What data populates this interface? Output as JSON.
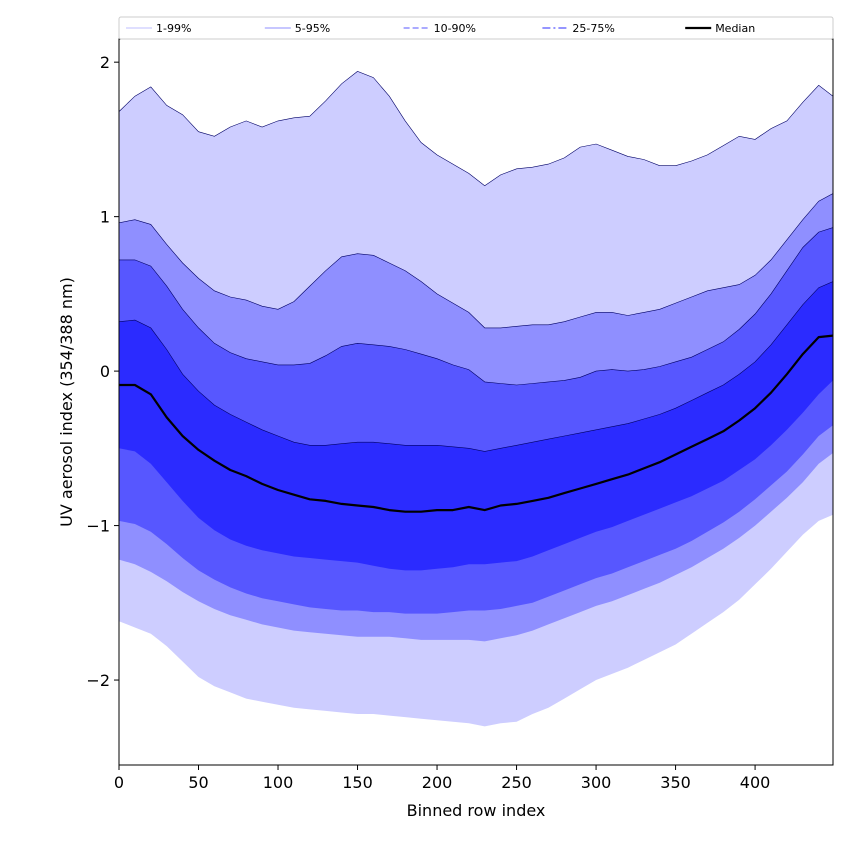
{
  "chart_data": {
    "type": "area",
    "xlabel": "Binned row index",
    "ylabel": "UV aerosol index (354/388 nm)",
    "xlim": [
      0,
      449
    ],
    "ylim": [
      -2.55,
      2.15
    ],
    "x_ticks": [
      0,
      50,
      100,
      150,
      200,
      250,
      300,
      350,
      400
    ],
    "y_ticks": [
      2,
      1,
      0,
      -1,
      -2
    ],
    "y_tick_labels": [
      "2",
      "1",
      "0",
      "−1",
      "−2"
    ],
    "legend_position": "top",
    "x": [
      0,
      10,
      20,
      30,
      40,
      50,
      60,
      70,
      80,
      90,
      100,
      110,
      120,
      130,
      140,
      150,
      160,
      170,
      180,
      190,
      200,
      210,
      220,
      230,
      240,
      250,
      260,
      270,
      280,
      290,
      300,
      310,
      320,
      330,
      340,
      350,
      360,
      370,
      380,
      390,
      400,
      410,
      420,
      430,
      440,
      449
    ],
    "bands": [
      {
        "name": "1-99%",
        "color": "#cdcdff",
        "line_style": "solid",
        "upper": [
          1.68,
          1.78,
          1.84,
          1.72,
          1.66,
          1.55,
          1.52,
          1.58,
          1.62,
          1.58,
          1.62,
          1.64,
          1.65,
          1.75,
          1.86,
          1.94,
          1.9,
          1.78,
          1.62,
          1.48,
          1.4,
          1.34,
          1.28,
          1.2,
          1.27,
          1.31,
          1.32,
          1.34,
          1.38,
          1.45,
          1.47,
          1.43,
          1.39,
          1.37,
          1.33,
          1.33,
          1.36,
          1.4,
          1.46,
          1.52,
          1.5,
          1.57,
          1.62,
          1.74,
          1.85,
          1.78
        ],
        "lower": [
          -1.62,
          -1.66,
          -1.7,
          -1.78,
          -1.88,
          -1.98,
          -2.04,
          -2.08,
          -2.12,
          -2.14,
          -2.16,
          -2.18,
          -2.19,
          -2.2,
          -2.21,
          -2.22,
          -2.22,
          -2.23,
          -2.24,
          -2.25,
          -2.26,
          -2.27,
          -2.28,
          -2.3,
          -2.28,
          -2.27,
          -2.22,
          -2.18,
          -2.12,
          -2.06,
          -2.0,
          -1.96,
          -1.92,
          -1.87,
          -1.82,
          -1.77,
          -1.7,
          -1.63,
          -1.56,
          -1.48,
          -1.38,
          -1.28,
          -1.17,
          -1.06,
          -0.97,
          -0.93
        ]
      },
      {
        "name": "5-95%",
        "color": "#8f8fff",
        "line_style": "solid",
        "upper": [
          0.96,
          0.98,
          0.95,
          0.82,
          0.7,
          0.6,
          0.52,
          0.48,
          0.46,
          0.42,
          0.4,
          0.45,
          0.55,
          0.65,
          0.74,
          0.76,
          0.75,
          0.7,
          0.65,
          0.58,
          0.5,
          0.44,
          0.38,
          0.28,
          0.28,
          0.29,
          0.3,
          0.3,
          0.32,
          0.35,
          0.38,
          0.38,
          0.36,
          0.38,
          0.4,
          0.44,
          0.48,
          0.52,
          0.54,
          0.56,
          0.62,
          0.72,
          0.85,
          0.98,
          1.1,
          1.15
        ],
        "lower": [
          -1.22,
          -1.25,
          -1.3,
          -1.36,
          -1.43,
          -1.49,
          -1.54,
          -1.58,
          -1.61,
          -1.64,
          -1.66,
          -1.68,
          -1.69,
          -1.7,
          -1.71,
          -1.72,
          -1.72,
          -1.72,
          -1.73,
          -1.74,
          -1.74,
          -1.74,
          -1.74,
          -1.75,
          -1.73,
          -1.71,
          -1.68,
          -1.64,
          -1.6,
          -1.56,
          -1.52,
          -1.49,
          -1.45,
          -1.41,
          -1.37,
          -1.32,
          -1.27,
          -1.21,
          -1.15,
          -1.08,
          -1.0,
          -0.91,
          -0.82,
          -0.72,
          -0.6,
          -0.53
        ]
      },
      {
        "name": "10-90%",
        "color": "#5757ff",
        "line_style": "dashed",
        "upper": [
          0.72,
          0.72,
          0.68,
          0.55,
          0.4,
          0.28,
          0.18,
          0.12,
          0.08,
          0.06,
          0.04,
          0.04,
          0.05,
          0.1,
          0.16,
          0.18,
          0.17,
          0.16,
          0.14,
          0.11,
          0.08,
          0.04,
          0.01,
          -0.07,
          -0.08,
          -0.09,
          -0.08,
          -0.07,
          -0.06,
          -0.04,
          0.0,
          0.01,
          0.0,
          0.01,
          0.03,
          0.06,
          0.09,
          0.14,
          0.19,
          0.27,
          0.37,
          0.5,
          0.65,
          0.8,
          0.9,
          0.93
        ],
        "lower": [
          -0.97,
          -0.99,
          -1.04,
          -1.12,
          -1.21,
          -1.29,
          -1.35,
          -1.4,
          -1.44,
          -1.47,
          -1.49,
          -1.51,
          -1.53,
          -1.54,
          -1.55,
          -1.55,
          -1.56,
          -1.56,
          -1.57,
          -1.57,
          -1.57,
          -1.56,
          -1.55,
          -1.55,
          -1.54,
          -1.52,
          -1.5,
          -1.46,
          -1.42,
          -1.38,
          -1.34,
          -1.31,
          -1.27,
          -1.23,
          -1.19,
          -1.15,
          -1.1,
          -1.04,
          -0.98,
          -0.91,
          -0.83,
          -0.74,
          -0.65,
          -0.54,
          -0.42,
          -0.35
        ]
      },
      {
        "name": "25-75%",
        "color": "#2b2bff",
        "line_style": "dashdot",
        "upper": [
          0.32,
          0.33,
          0.28,
          0.14,
          -0.02,
          -0.13,
          -0.22,
          -0.28,
          -0.33,
          -0.38,
          -0.42,
          -0.46,
          -0.48,
          -0.48,
          -0.47,
          -0.46,
          -0.46,
          -0.47,
          -0.48,
          -0.48,
          -0.48,
          -0.49,
          -0.5,
          -0.52,
          -0.5,
          -0.48,
          -0.46,
          -0.44,
          -0.42,
          -0.4,
          -0.38,
          -0.36,
          -0.34,
          -0.31,
          -0.28,
          -0.24,
          -0.19,
          -0.14,
          -0.09,
          -0.02,
          0.06,
          0.17,
          0.3,
          0.43,
          0.54,
          0.58
        ],
        "lower": [
          -0.5,
          -0.52,
          -0.6,
          -0.72,
          -0.84,
          -0.95,
          -1.03,
          -1.09,
          -1.13,
          -1.16,
          -1.18,
          -1.2,
          -1.21,
          -1.22,
          -1.23,
          -1.24,
          -1.26,
          -1.28,
          -1.29,
          -1.29,
          -1.28,
          -1.27,
          -1.25,
          -1.25,
          -1.24,
          -1.23,
          -1.2,
          -1.16,
          -1.12,
          -1.08,
          -1.04,
          -1.01,
          -0.97,
          -0.93,
          -0.89,
          -0.85,
          -0.81,
          -0.76,
          -0.71,
          -0.64,
          -0.57,
          -0.48,
          -0.38,
          -0.27,
          -0.15,
          -0.06
        ]
      }
    ],
    "series": [
      {
        "name": "Median",
        "color": "#000000",
        "line_style": "solid",
        "values": [
          -0.09,
          -0.09,
          -0.15,
          -0.3,
          -0.42,
          -0.51,
          -0.58,
          -0.64,
          -0.68,
          -0.73,
          -0.77,
          -0.8,
          -0.83,
          -0.84,
          -0.86,
          -0.87,
          -0.88,
          -0.9,
          -0.91,
          -0.91,
          -0.9,
          -0.9,
          -0.88,
          -0.9,
          -0.87,
          -0.86,
          -0.84,
          -0.82,
          -0.79,
          -0.76,
          -0.73,
          -0.7,
          -0.67,
          -0.63,
          -0.59,
          -0.54,
          -0.49,
          -0.44,
          -0.39,
          -0.32,
          -0.24,
          -0.14,
          -0.02,
          0.11,
          0.22,
          0.23
        ]
      }
    ]
  }
}
